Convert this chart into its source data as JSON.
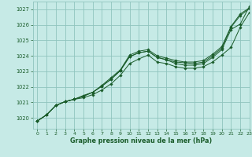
{
  "background_color": "#c6eae6",
  "grid_color": "#90c4be",
  "line_color": "#1a5c2a",
  "xlabel": "Graphe pression niveau de la mer (hPa)",
  "ylim": [
    1019.3,
    1027.5
  ],
  "xlim": [
    -0.5,
    23
  ],
  "yticks": [
    1020,
    1021,
    1022,
    1023,
    1024,
    1025,
    1026,
    1027
  ],
  "xticks": [
    0,
    1,
    2,
    3,
    4,
    5,
    6,
    7,
    8,
    9,
    10,
    11,
    12,
    13,
    14,
    15,
    16,
    17,
    18,
    19,
    20,
    21,
    22,
    23
  ],
  "series": [
    [
      1019.8,
      1020.2,
      1020.8,
      1021.05,
      1021.2,
      1021.4,
      1021.65,
      1022.05,
      1022.5,
      1023.05,
      1023.95,
      1024.2,
      1024.3,
      1023.9,
      1023.75,
      1023.6,
      1023.55,
      1023.5,
      1023.6,
      1024.0,
      1024.5,
      1025.85,
      1026.6,
      1027.05
    ],
    [
      1019.8,
      1020.2,
      1020.8,
      1021.05,
      1021.2,
      1021.3,
      1021.5,
      1021.8,
      1022.2,
      1022.75,
      1023.5,
      1023.8,
      1024.05,
      1023.6,
      1023.5,
      1023.3,
      1023.2,
      1023.2,
      1023.3,
      1023.6,
      1024.05,
      1024.55,
      1025.85,
      1026.8
    ],
    [
      1019.8,
      1020.2,
      1020.8,
      1021.05,
      1021.2,
      1021.4,
      1021.65,
      1022.05,
      1022.5,
      1023.05,
      1023.95,
      1024.2,
      1024.3,
      1023.9,
      1023.75,
      1023.5,
      1023.4,
      1023.4,
      1023.5,
      1023.9,
      1024.4,
      1025.7,
      1026.05,
      1027.2
    ],
    [
      1019.8,
      1020.2,
      1020.8,
      1021.05,
      1021.2,
      1021.45,
      1021.65,
      1022.1,
      1022.6,
      1023.1,
      1024.05,
      1024.3,
      1024.4,
      1024.0,
      1023.85,
      1023.7,
      1023.6,
      1023.6,
      1023.7,
      1024.1,
      1024.6,
      1025.9,
      1026.7,
      1027.1
    ]
  ]
}
